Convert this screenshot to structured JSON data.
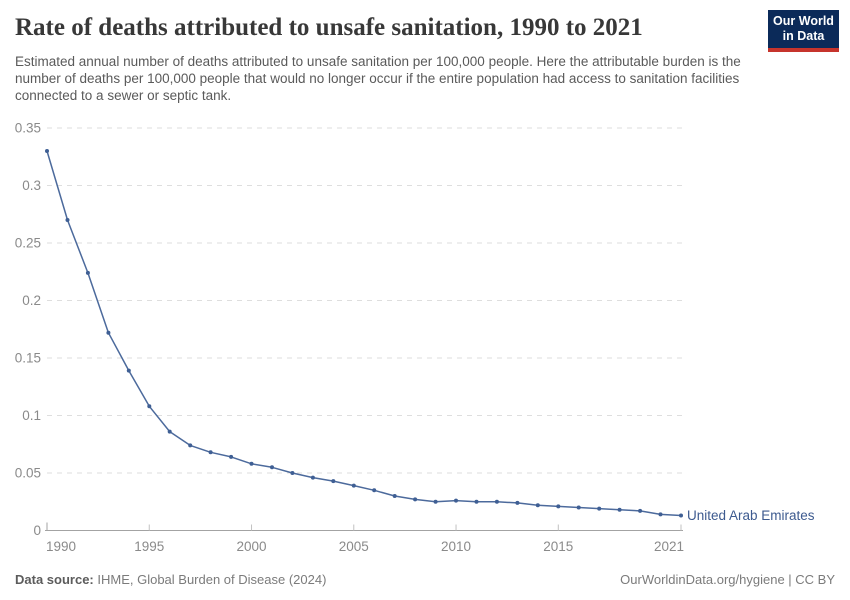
{
  "header": {
    "title": "Rate of deaths attributed to unsafe sanitation, 1990 to 2021",
    "subtitle": "Estimated annual number of deaths attributed to unsafe sanitation per 100,000 people. Here the attributable burden is the number of deaths per 100,000 people that would no longer occur if the entire population had access to sanitation facilities connected to a sewer or septic tank."
  },
  "logo": {
    "line1": "Our World",
    "line2": "in Data",
    "bg_color": "#0b2a59",
    "accent_color": "#c6342c"
  },
  "chart_data": {
    "type": "line",
    "title": "Rate of deaths attributed to unsafe sanitation, 1990 to 2021",
    "xlabel": "",
    "ylabel": "",
    "xlim": [
      1990,
      2021
    ],
    "ylim": [
      0,
      0.35
    ],
    "grid": "horizontal-dashed",
    "legend": "end-of-line-label",
    "x": [
      1990,
      1991,
      1992,
      1993,
      1994,
      1995,
      1996,
      1997,
      1998,
      1999,
      2000,
      2001,
      2002,
      2003,
      2004,
      2005,
      2006,
      2007,
      2008,
      2009,
      2010,
      2011,
      2012,
      2013,
      2014,
      2015,
      2016,
      2017,
      2018,
      2019,
      2020,
      2021
    ],
    "series": [
      {
        "name": "United Arab Emirates",
        "color": "#4c6a9c",
        "values": [
          0.33,
          0.27,
          0.224,
          0.172,
          0.139,
          0.108,
          0.086,
          0.074,
          0.068,
          0.064,
          0.058,
          0.055,
          0.05,
          0.046,
          0.043,
          0.039,
          0.035,
          0.03,
          0.027,
          0.025,
          0.026,
          0.025,
          0.025,
          0.024,
          0.022,
          0.021,
          0.02,
          0.019,
          0.018,
          0.017,
          0.014,
          0.013
        ]
      }
    ],
    "yticks": {
      "values": [
        0,
        0.05,
        0.1,
        0.15,
        0.2,
        0.25,
        0.3,
        0.35
      ],
      "labels": [
        "0",
        "0.05",
        "0.1",
        "0.15",
        "0.2",
        "0.25",
        "0.3",
        "0.35"
      ]
    },
    "xticks": {
      "values": [
        1990,
        1995,
        2000,
        2005,
        2010,
        2015,
        2021
      ],
      "labels": [
        "1990",
        "1995",
        "2000",
        "2005",
        "2010",
        "2015",
        "2021"
      ]
    }
  },
  "colors": {
    "line": "#4c6a9c",
    "marker": "#3f5f94",
    "grid": "#dedede",
    "axis": "#a3a3a3",
    "tick": "#c2c2c2",
    "tick_label": "#8a8a8a",
    "entity_label": "#3d5a8f"
  },
  "footer": {
    "datasource_label": "Data source:",
    "datasource_value": " IHME, Global Burden of Disease (2024)",
    "credit": "OurWorldinData.org/hygiene | CC BY"
  }
}
